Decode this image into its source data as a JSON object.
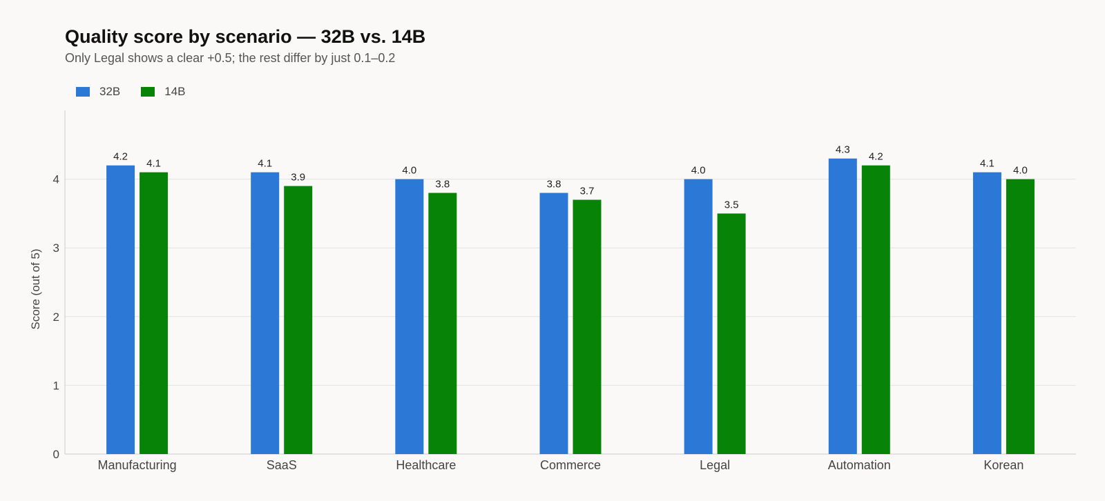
{
  "chart_data": {
    "type": "bar",
    "title": "Quality score by scenario — 32B vs. 14B",
    "subtitle": "Only Legal shows a clear +0.5; the rest differ by just 0.1–0.2",
    "xlabel": "",
    "ylabel": "Score (out of 5)",
    "ylim": [
      0,
      5
    ],
    "yticks": [
      0,
      1,
      2,
      3,
      4
    ],
    "grid": true,
    "legend_position": "top-left",
    "categories": [
      "Manufacturing",
      "SaaS",
      "Healthcare",
      "Commerce",
      "Legal",
      "Automation",
      "Korean"
    ],
    "series": [
      {
        "name": "32B",
        "color": "#2b78d6",
        "values": [
          4.2,
          4.1,
          4.0,
          3.8,
          4.0,
          4.3,
          4.1
        ],
        "labels": [
          "4.2",
          "4.1",
          "4.0",
          "3.8",
          "4.0",
          "4.3",
          "4.1"
        ]
      },
      {
        "name": "14B",
        "color": "#078307",
        "values": [
          4.1,
          3.9,
          3.8,
          3.7,
          3.5,
          4.2,
          4.0
        ],
        "labels": [
          "4.1",
          "3.9",
          "3.8",
          "3.7",
          "3.5",
          "4.2",
          "4.0"
        ]
      }
    ]
  }
}
